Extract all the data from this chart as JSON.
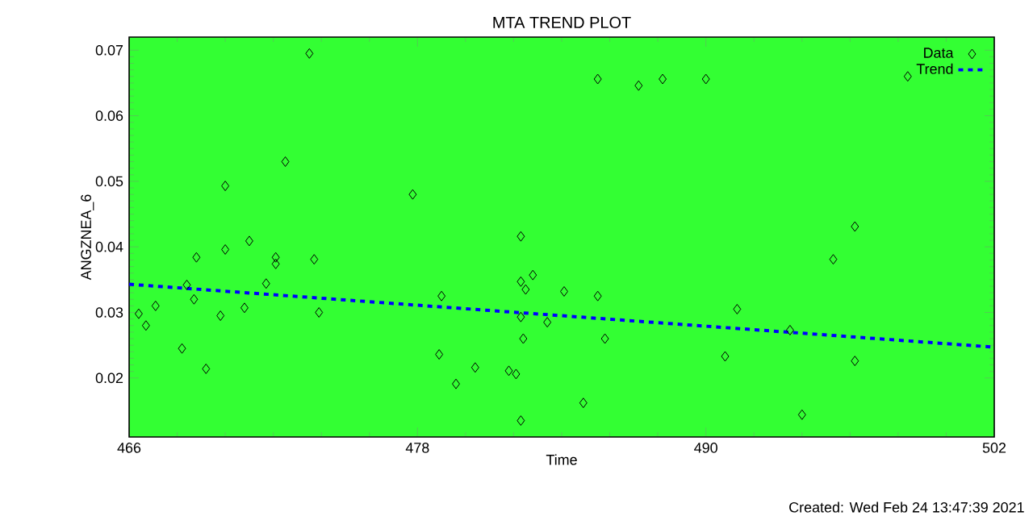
{
  "chart_data": {
    "type": "scatter",
    "title": "MTA TREND PLOT",
    "xlabel": "Time",
    "ylabel": "ANGZNEA_6",
    "xlim": [
      466,
      502
    ],
    "xticks": [
      466,
      478,
      490,
      502
    ],
    "ylim": [
      0.011,
      0.072
    ],
    "yticks": [
      0.02,
      0.03,
      0.04,
      0.05,
      0.06,
      0.07
    ],
    "legend": "top right",
    "annotations": [
      "Created: Wed Feb 24 13:47:39 2021"
    ],
    "series": [
      {
        "name": "Data",
        "marker": "diamond",
        "color": "#000000",
        "x": [
          466.4,
          466.7,
          467.1,
          468.2,
          468.4,
          468.7,
          468.8,
          469.2,
          469.8,
          470.0,
          470.0,
          470.8,
          471.0,
          471.7,
          472.1,
          472.1,
          472.5,
          473.5,
          473.7,
          473.9,
          477.8,
          479.0,
          478.9,
          479.6,
          480.4,
          481.8,
          482.1,
          482.3,
          482.3,
          482.5,
          482.3,
          482.4,
          482.3,
          482.8,
          483.4,
          484.1,
          484.9,
          485.5,
          485.5,
          485.8,
          487.2,
          488.2,
          490.0,
          490.8,
          491.3,
          493.5,
          494.0,
          495.3,
          496.2,
          496.2,
          498.4
        ],
        "values": [
          0.0298,
          0.028,
          0.031,
          0.0245,
          0.0342,
          0.032,
          0.0384,
          0.0214,
          0.0295,
          0.0493,
          0.0396,
          0.0307,
          0.0409,
          0.0344,
          0.0384,
          0.0374,
          0.053,
          0.0695,
          0.0381,
          0.03,
          0.048,
          0.0325,
          0.0236,
          0.0191,
          0.0216,
          0.0211,
          0.0206,
          0.0416,
          0.0347,
          0.0335,
          0.0293,
          0.026,
          0.0135,
          0.0357,
          0.0285,
          0.0332,
          0.0162,
          0.0325,
          0.0656,
          0.026,
          0.0646,
          0.0656,
          0.0656,
          0.0233,
          0.0305,
          0.0273,
          0.0144,
          0.0381,
          0.0226,
          0.0431,
          0.066
        ]
      },
      {
        "name": "Trend",
        "type": "line",
        "line_style": "dashed",
        "color": "#0000ff",
        "x": [
          466,
          502
        ],
        "values": [
          0.0343,
          0.0247
        ]
      }
    ]
  }
}
